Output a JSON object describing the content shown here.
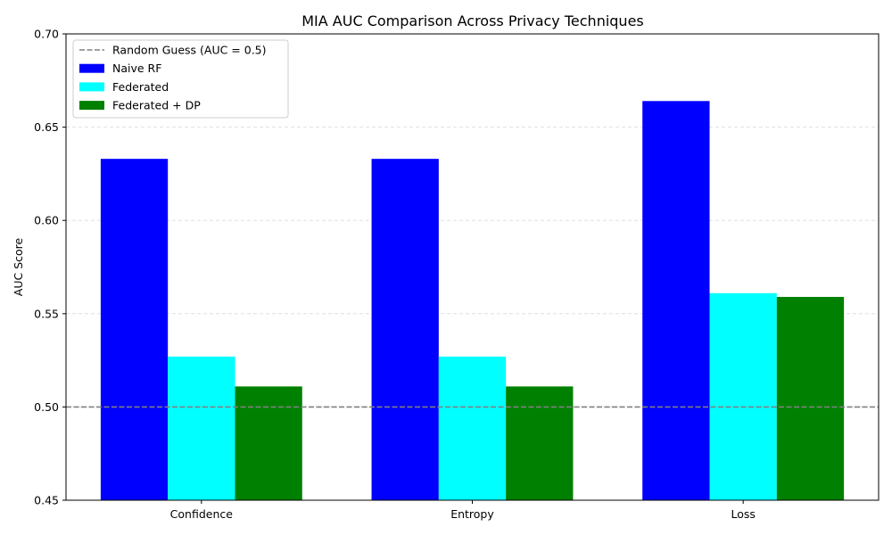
{
  "chart_data": {
    "type": "bar",
    "title": "MIA AUC Comparison Across Privacy Techniques",
    "xlabel": "",
    "ylabel": "AUC Score",
    "categories": [
      "Confidence",
      "Entropy",
      "Loss"
    ],
    "series": [
      {
        "name": "Naive RF",
        "color": "#0000ff",
        "values": [
          0.633,
          0.633,
          0.664
        ]
      },
      {
        "name": "Federated",
        "color": "#00ffff",
        "values": [
          0.527,
          0.527,
          0.561
        ]
      },
      {
        "name": "Federated + DP",
        "color": "#008000",
        "values": [
          0.511,
          0.511,
          0.559
        ]
      }
    ],
    "reference_line": {
      "label": "Random Guess (AUC = 0.5)",
      "value": 0.5,
      "color": "#808080",
      "style": "dashed"
    },
    "ylim": [
      0.45,
      0.7
    ],
    "yticks": [
      "0.45",
      "0.50",
      "0.55",
      "0.60",
      "0.65",
      "0.70"
    ],
    "grid": {
      "y": true,
      "style": "dashed"
    },
    "legend_position": "top-left"
  }
}
